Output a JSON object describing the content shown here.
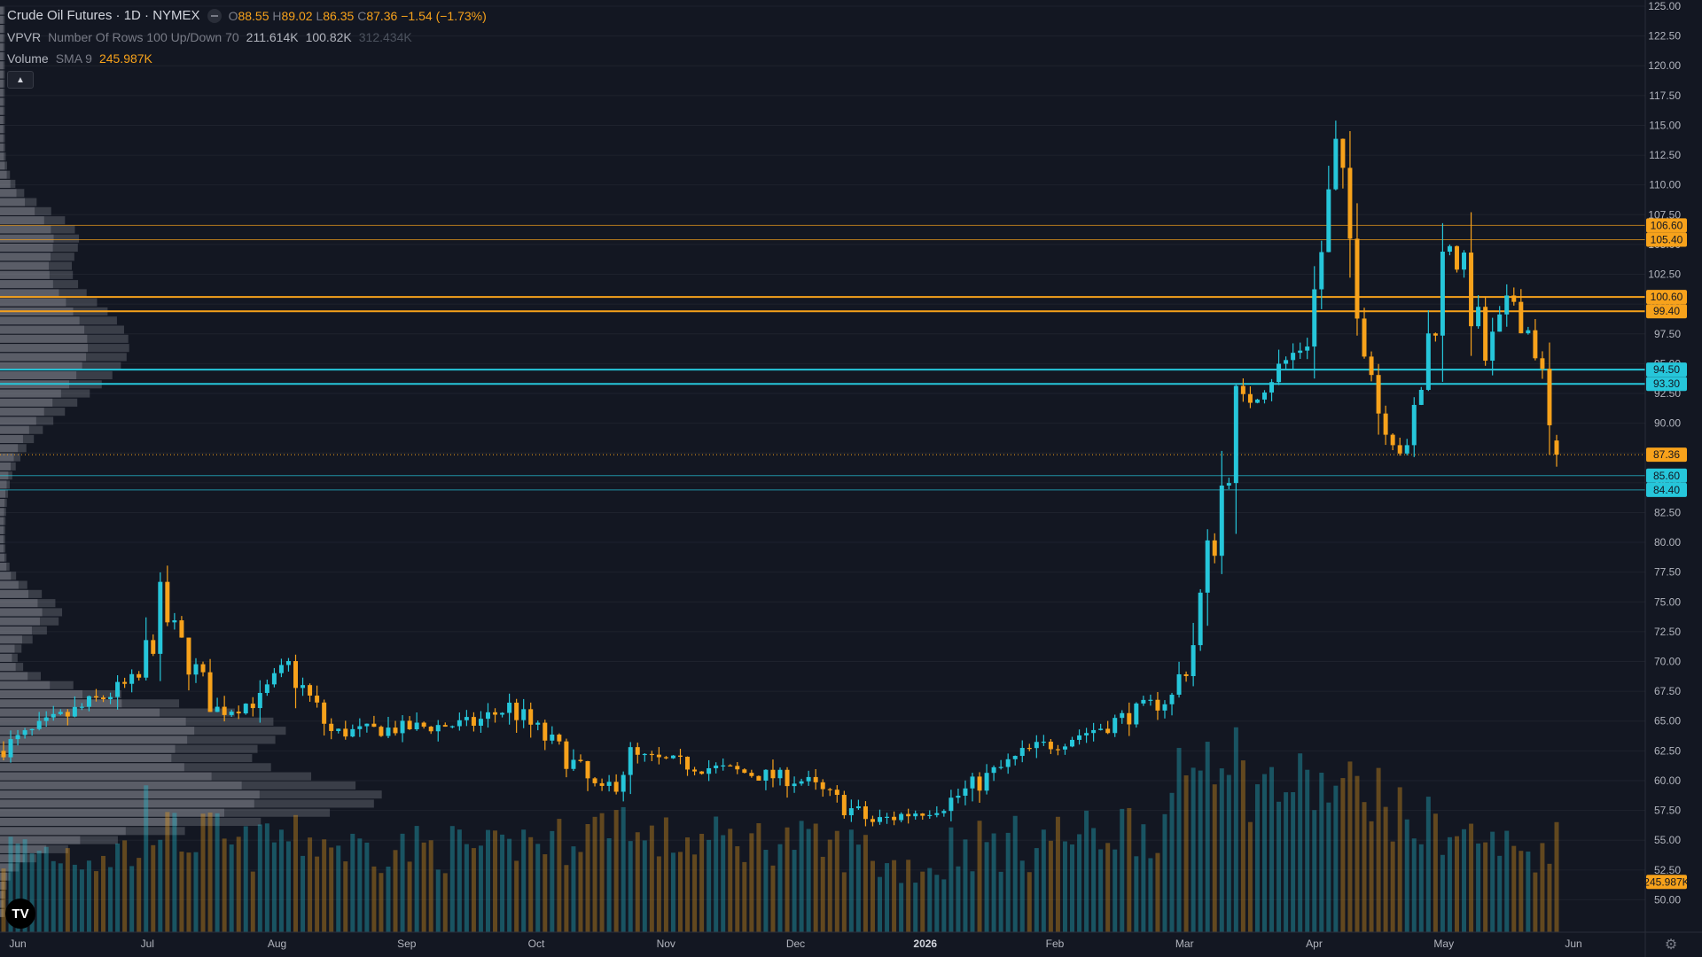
{
  "legend": {
    "title": "Crude Oil Futures · 1D · NYMEX",
    "ohlc": {
      "o_label": "O",
      "o": "88.55",
      "h_label": "H",
      "h": "89.02",
      "l_label": "L",
      "l": "86.35",
      "c_label": "C",
      "c": "87.36",
      "chg": "−1.54 (−1.73%)"
    },
    "vpvr": {
      "name": "VPVR",
      "params": "Number Of Rows 100 Up/Down 70",
      "v1": "211.614K",
      "v2": "100.82K",
      "v3": "312.434K"
    },
    "volume": {
      "name": "Volume",
      "params": "SMA 9",
      "value": "245.987K"
    }
  },
  "colors": {
    "up": "#26c6da",
    "down": "#f7a21b",
    "background": "#131722",
    "grid": "#1e222d",
    "profile": "#9598a1"
  },
  "icons": {
    "collapse": "chevron-up-icon",
    "logo": "tradingview-logo-icon",
    "settings": "gear-icon"
  },
  "logo_text": "TV",
  "chart_data": {
    "type": "candlestick",
    "symbol": "Crude Oil Futures",
    "interval": "1D",
    "exchange": "NYMEX",
    "y_ticks": [
      "50.00",
      "52.50",
      "55.00",
      "57.50",
      "60.00",
      "62.50",
      "65.00",
      "67.50",
      "70.00",
      "72.50",
      "75.00",
      "77.50",
      "80.00",
      "82.50",
      "85.00",
      "87.50",
      "90.00",
      "92.50",
      "95.00",
      "97.50",
      "100.00",
      "102.50",
      "105.00",
      "107.50",
      "110.00",
      "112.50",
      "115.00",
      "117.50",
      "120.00",
      "122.50",
      "125.00"
    ],
    "ylim": [
      48.5,
      125
    ],
    "x_months": [
      "Jun",
      "Jul",
      "Aug",
      "Sep",
      "Oct",
      "Nov",
      "Dec",
      "2026",
      "Feb",
      "Mar",
      "Apr",
      "May",
      "Jun"
    ],
    "levels": [
      {
        "price": 106.6,
        "label": "106.60",
        "color": "#f7a21b",
        "style": "thin"
      },
      {
        "price": 105.4,
        "label": "105.40",
        "color": "#f7a21b",
        "style": "thin"
      },
      {
        "price": 100.6,
        "label": "100.60",
        "color": "#f7a21b",
        "style": "thick"
      },
      {
        "price": 99.4,
        "label": "99.40",
        "color": "#f7a21b",
        "style": "thick"
      },
      {
        "price": 94.5,
        "label": "94.50",
        "color": "#26c6da",
        "style": "thick"
      },
      {
        "price": 93.3,
        "label": "93.30",
        "color": "#26c6da",
        "style": "thick"
      },
      {
        "price": 85.6,
        "label": "85.60",
        "color": "#26c6da",
        "style": "thin"
      },
      {
        "price": 84.4,
        "label": "84.40",
        "color": "#26c6da",
        "style": "thin"
      }
    ],
    "last_price": {
      "price": 87.36,
      "label": "87.36"
    },
    "volume_label": "245.987K",
    "vol_max": 320,
    "ohlc_anchor": {
      "o": "88.55",
      "h": "89.02",
      "l": "86.35",
      "c": "87.36"
    },
    "segments": [
      {
        "days": 20,
        "start": 62.5,
        "end": 68.5,
        "vol_lo": 70,
        "vol_hi": 150
      },
      {
        "days": 3,
        "start": 68.5,
        "end": 74.5,
        "vol_lo": 110,
        "vol_hi": 220
      },
      {
        "days": 8,
        "start": 74.5,
        "end": 65.8,
        "vol_lo": 90,
        "vol_hi": 170
      },
      {
        "days": 6,
        "start": 65.8,
        "end": 66.8,
        "vol_lo": 80,
        "vol_hi": 150
      },
      {
        "days": 4,
        "start": 66.8,
        "end": 69.5,
        "vol_lo": 90,
        "vol_hi": 170
      },
      {
        "days": 6,
        "start": 69.5,
        "end": 64.0,
        "vol_lo": 90,
        "vol_hi": 160
      },
      {
        "days": 20,
        "start": 64.0,
        "end": 64.8,
        "vol_lo": 80,
        "vol_hi": 150
      },
      {
        "days": 5,
        "start": 64.8,
        "end": 66.2,
        "vol_lo": 80,
        "vol_hi": 140
      },
      {
        "days": 8,
        "start": 66.2,
        "end": 62.0,
        "vol_lo": 90,
        "vol_hi": 160
      },
      {
        "days": 5,
        "start": 62.0,
        "end": 58.5,
        "vol_lo": 100,
        "vol_hi": 180
      },
      {
        "days": 4,
        "start": 58.5,
        "end": 62.0,
        "vol_lo": 120,
        "vol_hi": 200
      },
      {
        "days": 24,
        "start": 62.0,
        "end": 60.0,
        "vol_lo": 90,
        "vol_hi": 160
      },
      {
        "days": 10,
        "start": 60.0,
        "end": 56.5,
        "vol_lo": 80,
        "vol_hi": 150
      },
      {
        "days": 10,
        "start": 56.5,
        "end": 58.0,
        "vol_lo": 60,
        "vol_hi": 120
      },
      {
        "days": 12,
        "start": 58.0,
        "end": 62.5,
        "vol_lo": 80,
        "vol_hi": 160
      },
      {
        "days": 10,
        "start": 62.5,
        "end": 64.5,
        "vol_lo": 90,
        "vol_hi": 170
      },
      {
        "days": 10,
        "start": 64.5,
        "end": 67.0,
        "vol_lo": 100,
        "vol_hi": 190
      },
      {
        "days": 3,
        "start": 67.0,
        "end": 71.5,
        "vol_lo": 180,
        "vol_hi": 260
      },
      {
        "days": 6,
        "start": 71.5,
        "end": 91.0,
        "vol_lo": 200,
        "vol_hi": 310
      },
      {
        "days": 10,
        "start": 91.0,
        "end": 97.0,
        "vol_lo": 150,
        "vol_hi": 250
      },
      {
        "days": 4,
        "start": 97.0,
        "end": 112.0,
        "vol_lo": 150,
        "vol_hi": 240
      },
      {
        "days": 6,
        "start": 112.0,
        "end": 91.5,
        "vol_lo": 150,
        "vol_hi": 240
      },
      {
        "days": 4,
        "start": 91.5,
        "end": 87.0,
        "vol_lo": 120,
        "vol_hi": 200
      },
      {
        "days": 6,
        "start": 87.0,
        "end": 106.5,
        "vol_lo": 100,
        "vol_hi": 190
      },
      {
        "days": 5,
        "start": 106.5,
        "end": 95.5,
        "vol_lo": 90,
        "vol_hi": 170
      },
      {
        "days": 4,
        "start": 95.5,
        "end": 100.5,
        "vol_lo": 80,
        "vol_hi": 150
      },
      {
        "days": 3,
        "start": 100.5,
        "end": 96.5,
        "vol_lo": 80,
        "vol_hi": 140
      },
      {
        "days": 2,
        "start": 96.5,
        "end": 88.55,
        "vol_lo": 70,
        "vol_hi": 130
      }
    ],
    "profile": {
      "rows": 100,
      "min": 48.5,
      "max": 125,
      "peaks": [
        {
          "price": 58.5,
          "width": 0.78,
          "spread": 3.2
        },
        {
          "price": 64.5,
          "width": 0.56,
          "spread": 3.0
        },
        {
          "price": 96.5,
          "width": 0.26,
          "spread": 6.5
        },
        {
          "price": 74.0,
          "width": 0.12,
          "spread": 2.5
        },
        {
          "price": 106.0,
          "width": 0.12,
          "spread": 3.0
        }
      ],
      "up_share": 0.68
    }
  }
}
